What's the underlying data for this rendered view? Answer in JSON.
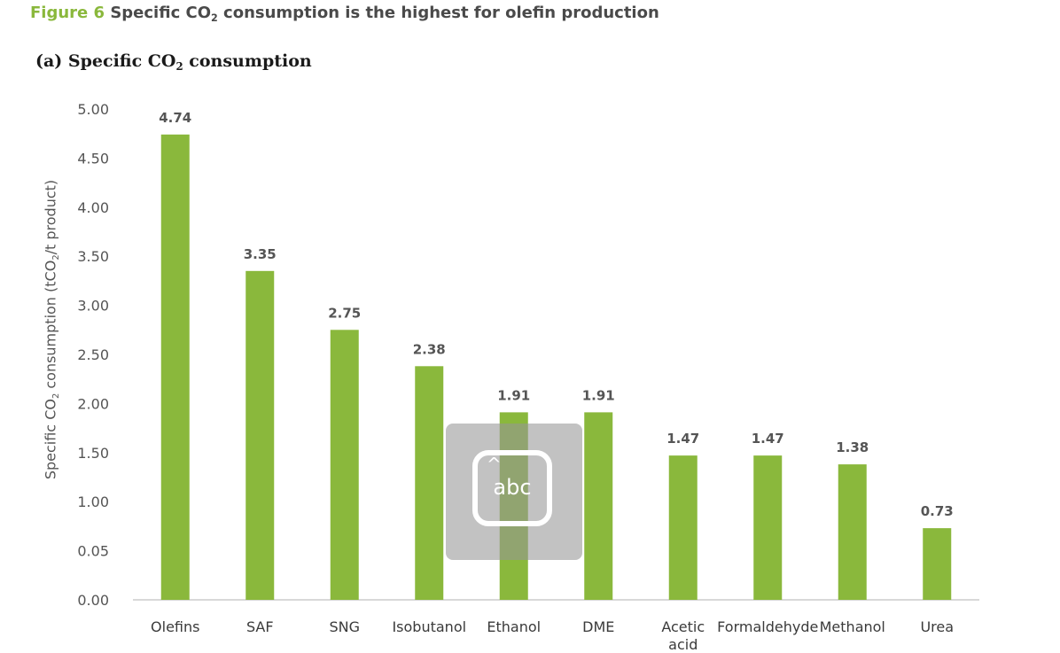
{
  "figure": {
    "label": "Figure 6",
    "title_part1": "Specific CO",
    "title_sub": "2",
    "title_part2": " consumption is the highest for olefin production"
  },
  "panel": {
    "title_part1": "(a) Specific CO",
    "title_sub": "2",
    "title_part2": " consumption"
  },
  "y_axis": {
    "label_part1": "Specific CO",
    "label_sub": "2",
    "label_part2": " consumption  (tCO",
    "label_sub2": "2",
    "label_part3": "/t product)"
  },
  "overlay": {
    "icon": "keyboard-abc-icon",
    "text": "abc",
    "caret": "^"
  },
  "chart_data": {
    "type": "bar",
    "categories": [
      "Olefins",
      "SAF",
      "SNG",
      "Isobutanol",
      "Ethanol",
      "DME",
      "Acetic acid",
      "Formaldehyde",
      "Methanol",
      "Urea"
    ],
    "values": [
      4.74,
      3.35,
      2.75,
      2.38,
      1.91,
      1.91,
      1.47,
      1.47,
      1.38,
      0.73
    ],
    "value_labels": [
      "4.74",
      "3.35",
      "2.75",
      "2.38",
      "1.91",
      "1.91",
      "1.47",
      "1.47",
      "1.38",
      "0.73"
    ],
    "ytick_labels": [
      "0.00",
      "0.05",
      "1.00",
      "1.50",
      "2.00",
      "2.50",
      "3.00",
      "3.50",
      "4.00",
      "4.50",
      "5.00"
    ],
    "ylim": [
      0,
      5
    ],
    "grid": false,
    "bar_color": "#8ab83c",
    "axis_color": "#cccccc"
  }
}
